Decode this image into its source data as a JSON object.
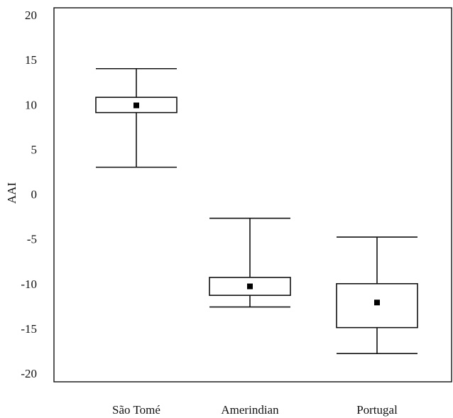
{
  "chart_data": {
    "type": "box",
    "title": "",
    "xlabel": "",
    "ylabel": "AAI",
    "ylim": [
      -21,
      20
    ],
    "yticks": [
      20,
      15,
      10,
      5,
      0,
      -5,
      -10,
      -15,
      -20
    ],
    "ytick_labels": [
      "20",
      "15",
      "10",
      "5",
      "0",
      "-5",
      "-10",
      "-15",
      "-20"
    ],
    "categories": [
      "São Tomé",
      "Amerindian",
      "Portugal"
    ],
    "series": [
      {
        "category": "São Tomé",
        "whisker_low": 3.0,
        "box_low": 9.1,
        "mean": 9.9,
        "box_high": 10.8,
        "whisker_high": 14.0
      },
      {
        "category": "Amerindian",
        "whisker_low": -12.6,
        "box_low": -11.3,
        "mean": -10.3,
        "box_high": -9.3,
        "whisker_high": -2.7
      },
      {
        "category": "Portugal",
        "whisker_low": -17.8,
        "box_low": -14.9,
        "mean": -12.1,
        "box_high": -10.0,
        "whisker_high": -4.8
      }
    ],
    "grid": false,
    "legend": "none"
  }
}
